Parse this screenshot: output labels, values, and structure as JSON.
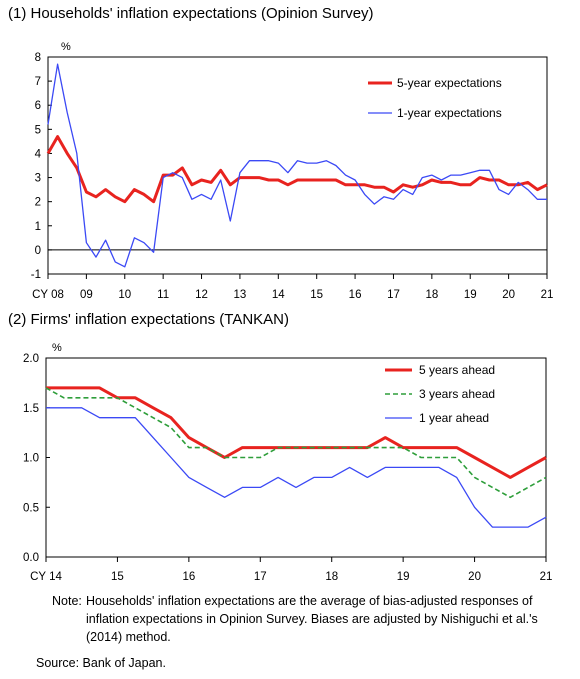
{
  "panel1_title": "(1) Households' inflation expectations (Opinion Survey)",
  "panel2_title": "(2) Firms' inflation expectations (TANKAN)",
  "note_label": "Note:",
  "note_text": "Households' inflation expectations are the average of bias-adjusted responses of inflation expectations in Opinion Survey. Biases are adjusted by Nishiguchi et al.'s (2014) method.",
  "source_text": "Source:  Bank of Japan.",
  "chart_data": [
    {
      "type": "line",
      "unit_label": "%",
      "ylim": [
        -1,
        8
      ],
      "yticks": [
        -1,
        0,
        1,
        2,
        3,
        4,
        5,
        6,
        7,
        8
      ],
      "xlim": [
        2008,
        2021
      ],
      "xticks": [
        {
          "x": 2008,
          "label": "CY 08"
        },
        {
          "x": 2009,
          "label": "09"
        },
        {
          "x": 2010,
          "label": "10"
        },
        {
          "x": 2011,
          "label": "11"
        },
        {
          "x": 2012,
          "label": "12"
        },
        {
          "x": 2013,
          "label": "13"
        },
        {
          "x": 2014,
          "label": "14"
        },
        {
          "x": 2015,
          "label": "15"
        },
        {
          "x": 2016,
          "label": "16"
        },
        {
          "x": 2017,
          "label": "17"
        },
        {
          "x": 2018,
          "label": "18"
        },
        {
          "x": 2019,
          "label": "19"
        },
        {
          "x": 2020,
          "label": "20"
        },
        {
          "x": 2021,
          "label": "21"
        }
      ],
      "legend_position": "top-right",
      "series": [
        {
          "name": "5-year expectations",
          "color": "#e8231f",
          "width": 3,
          "dash": "",
          "points": [
            [
              2008.0,
              4.0
            ],
            [
              2008.25,
              4.7
            ],
            [
              2008.5,
              4.0
            ],
            [
              2008.75,
              3.4
            ],
            [
              2009.0,
              2.4
            ],
            [
              2009.25,
              2.2
            ],
            [
              2009.5,
              2.5
            ],
            [
              2009.75,
              2.2
            ],
            [
              2010.0,
              2.0
            ],
            [
              2010.25,
              2.5
            ],
            [
              2010.5,
              2.3
            ],
            [
              2010.75,
              2.0
            ],
            [
              2011.0,
              3.1
            ],
            [
              2011.25,
              3.1
            ],
            [
              2011.5,
              3.4
            ],
            [
              2011.75,
              2.7
            ],
            [
              2012.0,
              2.9
            ],
            [
              2012.25,
              2.8
            ],
            [
              2012.5,
              3.3
            ],
            [
              2012.75,
              2.7
            ],
            [
              2013.0,
              3.0
            ],
            [
              2013.25,
              3.0
            ],
            [
              2013.5,
              3.0
            ],
            [
              2013.75,
              2.9
            ],
            [
              2014.0,
              2.9
            ],
            [
              2014.25,
              2.7
            ],
            [
              2014.5,
              2.9
            ],
            [
              2014.75,
              2.9
            ],
            [
              2015.0,
              2.9
            ],
            [
              2015.25,
              2.9
            ],
            [
              2015.5,
              2.9
            ],
            [
              2015.75,
              2.7
            ],
            [
              2016.0,
              2.7
            ],
            [
              2016.25,
              2.7
            ],
            [
              2016.5,
              2.6
            ],
            [
              2016.75,
              2.6
            ],
            [
              2017.0,
              2.4
            ],
            [
              2017.25,
              2.7
            ],
            [
              2017.5,
              2.6
            ],
            [
              2017.75,
              2.7
            ],
            [
              2018.0,
              2.9
            ],
            [
              2018.25,
              2.8
            ],
            [
              2018.5,
              2.8
            ],
            [
              2018.75,
              2.7
            ],
            [
              2019.0,
              2.7
            ],
            [
              2019.25,
              3.0
            ],
            [
              2019.5,
              2.9
            ],
            [
              2019.75,
              2.9
            ],
            [
              2020.0,
              2.7
            ],
            [
              2020.25,
              2.7
            ],
            [
              2020.5,
              2.8
            ],
            [
              2020.75,
              2.5
            ],
            [
              2021.0,
              2.7
            ]
          ]
        },
        {
          "name": "1-year expectations",
          "color": "#3b49f5",
          "width": 1.3,
          "dash": "",
          "points": [
            [
              2008.0,
              5.2
            ],
            [
              2008.25,
              7.7
            ],
            [
              2008.5,
              5.7
            ],
            [
              2008.75,
              4.0
            ],
            [
              2009.0,
              0.3
            ],
            [
              2009.25,
              -0.3
            ],
            [
              2009.5,
              0.4
            ],
            [
              2009.75,
              -0.5
            ],
            [
              2010.0,
              -0.7
            ],
            [
              2010.25,
              0.5
            ],
            [
              2010.5,
              0.3
            ],
            [
              2010.75,
              -0.1
            ],
            [
              2011.0,
              3.0
            ],
            [
              2011.25,
              3.2
            ],
            [
              2011.5,
              3.0
            ],
            [
              2011.75,
              2.1
            ],
            [
              2012.0,
              2.3
            ],
            [
              2012.25,
              2.1
            ],
            [
              2012.5,
              2.9
            ],
            [
              2012.75,
              1.2
            ],
            [
              2013.0,
              3.2
            ],
            [
              2013.25,
              3.7
            ],
            [
              2013.5,
              3.7
            ],
            [
              2013.75,
              3.7
            ],
            [
              2014.0,
              3.6
            ],
            [
              2014.25,
              3.2
            ],
            [
              2014.5,
              3.7
            ],
            [
              2014.75,
              3.6
            ],
            [
              2015.0,
              3.6
            ],
            [
              2015.25,
              3.7
            ],
            [
              2015.5,
              3.5
            ],
            [
              2015.75,
              3.1
            ],
            [
              2016.0,
              2.9
            ],
            [
              2016.25,
              2.3
            ],
            [
              2016.5,
              1.9
            ],
            [
              2016.75,
              2.2
            ],
            [
              2017.0,
              2.1
            ],
            [
              2017.25,
              2.5
            ],
            [
              2017.5,
              2.3
            ],
            [
              2017.75,
              3.0
            ],
            [
              2018.0,
              3.1
            ],
            [
              2018.25,
              2.9
            ],
            [
              2018.5,
              3.1
            ],
            [
              2018.75,
              3.1
            ],
            [
              2019.0,
              3.2
            ],
            [
              2019.25,
              3.3
            ],
            [
              2019.5,
              3.3
            ],
            [
              2019.75,
              2.5
            ],
            [
              2020.0,
              2.3
            ],
            [
              2020.25,
              2.8
            ],
            [
              2020.5,
              2.5
            ],
            [
              2020.75,
              2.1
            ],
            [
              2021.0,
              2.1
            ]
          ]
        }
      ]
    },
    {
      "type": "line",
      "unit_label": "%",
      "ylim": [
        0.0,
        2.0
      ],
      "yticks": [
        0.0,
        0.5,
        1.0,
        1.5,
        2.0
      ],
      "ytick_labels": [
        "0.0",
        "0.5",
        "1.0",
        "1.5",
        "2.0"
      ],
      "xlim": [
        2014,
        2021
      ],
      "xticks": [
        {
          "x": 2014,
          "label": "CY 14"
        },
        {
          "x": 2015,
          "label": "15"
        },
        {
          "x": 2016,
          "label": "16"
        },
        {
          "x": 2017,
          "label": "17"
        },
        {
          "x": 2018,
          "label": "18"
        },
        {
          "x": 2019,
          "label": "19"
        },
        {
          "x": 2020,
          "label": "20"
        },
        {
          "x": 2021,
          "label": "21"
        }
      ],
      "legend_position": "top-right",
      "series": [
        {
          "name": "5 years ahead",
          "color": "#e8231f",
          "width": 3,
          "dash": "",
          "points": [
            [
              2014.0,
              1.7
            ],
            [
              2014.25,
              1.7
            ],
            [
              2014.5,
              1.7
            ],
            [
              2014.75,
              1.7
            ],
            [
              2015.0,
              1.6
            ],
            [
              2015.25,
              1.6
            ],
            [
              2015.5,
              1.5
            ],
            [
              2015.75,
              1.4
            ],
            [
              2016.0,
              1.2
            ],
            [
              2016.25,
              1.1
            ],
            [
              2016.5,
              1.0
            ],
            [
              2016.75,
              1.1
            ],
            [
              2017.0,
              1.1
            ],
            [
              2017.25,
              1.1
            ],
            [
              2017.5,
              1.1
            ],
            [
              2017.75,
              1.1
            ],
            [
              2018.0,
              1.1
            ],
            [
              2018.25,
              1.1
            ],
            [
              2018.5,
              1.1
            ],
            [
              2018.75,
              1.2
            ],
            [
              2019.0,
              1.1
            ],
            [
              2019.25,
              1.1
            ],
            [
              2019.5,
              1.1
            ],
            [
              2019.75,
              1.1
            ],
            [
              2020.0,
              1.0
            ],
            [
              2020.25,
              0.9
            ],
            [
              2020.5,
              0.8
            ],
            [
              2020.75,
              0.9
            ],
            [
              2021.0,
              1.0
            ]
          ]
        },
        {
          "name": "3 years ahead",
          "color": "#2e9e3a",
          "width": 1.6,
          "dash": "5,3",
          "points": [
            [
              2014.0,
              1.7
            ],
            [
              2014.25,
              1.6
            ],
            [
              2014.5,
              1.6
            ],
            [
              2014.75,
              1.6
            ],
            [
              2015.0,
              1.6
            ],
            [
              2015.25,
              1.5
            ],
            [
              2015.5,
              1.4
            ],
            [
              2015.75,
              1.3
            ],
            [
              2016.0,
              1.1
            ],
            [
              2016.25,
              1.1
            ],
            [
              2016.5,
              1.0
            ],
            [
              2016.75,
              1.0
            ],
            [
              2017.0,
              1.0
            ],
            [
              2017.25,
              1.1
            ],
            [
              2017.5,
              1.1
            ],
            [
              2017.75,
              1.1
            ],
            [
              2018.0,
              1.1
            ],
            [
              2018.25,
              1.1
            ],
            [
              2018.5,
              1.1
            ],
            [
              2018.75,
              1.1
            ],
            [
              2019.0,
              1.1
            ],
            [
              2019.25,
              1.0
            ],
            [
              2019.5,
              1.0
            ],
            [
              2019.75,
              1.0
            ],
            [
              2020.0,
              0.8
            ],
            [
              2020.25,
              0.7
            ],
            [
              2020.5,
              0.6
            ],
            [
              2020.75,
              0.7
            ],
            [
              2021.0,
              0.8
            ]
          ]
        },
        {
          "name": "1 year ahead",
          "color": "#3b49f5",
          "width": 1.3,
          "dash": "",
          "points": [
            [
              2014.0,
              1.5
            ],
            [
              2014.25,
              1.5
            ],
            [
              2014.5,
              1.5
            ],
            [
              2014.75,
              1.4
            ],
            [
              2015.0,
              1.4
            ],
            [
              2015.25,
              1.4
            ],
            [
              2015.5,
              1.2
            ],
            [
              2015.75,
              1.0
            ],
            [
              2016.0,
              0.8
            ],
            [
              2016.25,
              0.7
            ],
            [
              2016.5,
              0.6
            ],
            [
              2016.75,
              0.7
            ],
            [
              2017.0,
              0.7
            ],
            [
              2017.25,
              0.8
            ],
            [
              2017.5,
              0.7
            ],
            [
              2017.75,
              0.8
            ],
            [
              2018.0,
              0.8
            ],
            [
              2018.25,
              0.9
            ],
            [
              2018.5,
              0.8
            ],
            [
              2018.75,
              0.9
            ],
            [
              2019.0,
              0.9
            ],
            [
              2019.25,
              0.9
            ],
            [
              2019.5,
              0.9
            ],
            [
              2019.75,
              0.8
            ],
            [
              2020.0,
              0.5
            ],
            [
              2020.25,
              0.3
            ],
            [
              2020.5,
              0.3
            ],
            [
              2020.75,
              0.3
            ],
            [
              2021.0,
              0.4
            ]
          ]
        }
      ]
    }
  ]
}
